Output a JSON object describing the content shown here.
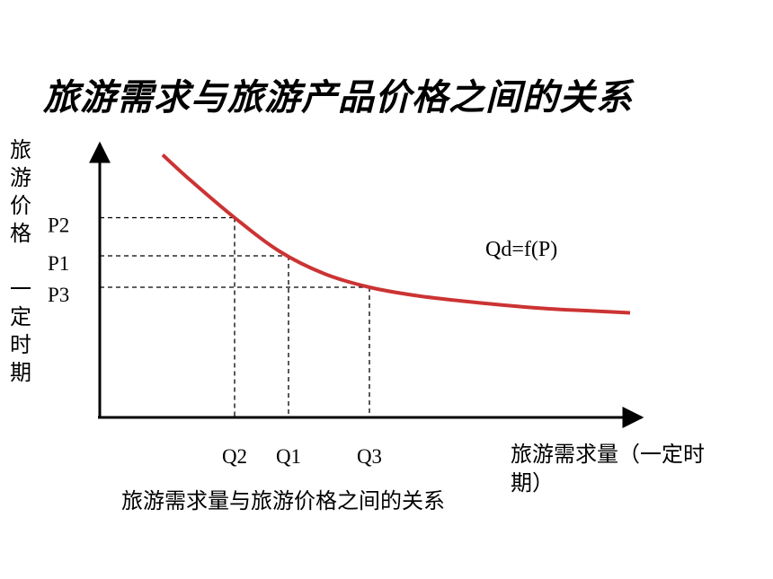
{
  "chart_data": {
    "type": "line",
    "title": "旅游需求与旅游产品价格之间的关系",
    "ylabel": "旅\n游\n价\n格\n\n一\n定\n时\n期",
    "xlabel": "旅游需求量（一定时期）",
    "caption": "旅游需求量与旅游价格之间的关系",
    "curve_label": "Qd=f(P)",
    "curve_color": "#cc3333",
    "series": [
      {
        "x": [
          0.7,
          1.0,
          1.5,
          2.0,
          2.5,
          3.0,
          3.5,
          4.0,
          4.5,
          5.0,
          5.5,
          5.9
        ],
        "y": [
          5.85,
          5.3,
          4.45,
          3.7,
          3.2,
          2.9,
          2.72,
          2.6,
          2.5,
          2.42,
          2.37,
          2.33
        ]
      }
    ],
    "points": [
      {
        "xlabel": "Q2",
        "ylabel": "P2",
        "x": 1.5,
        "y": 4.45
      },
      {
        "xlabel": "Q1",
        "ylabel": "P1",
        "x": 2.1,
        "y": 3.6
      },
      {
        "xlabel": "Q3",
        "ylabel": "P3",
        "x": 3.0,
        "y": 2.9
      }
    ],
    "xlim": [
      0,
      6.0
    ],
    "ylim": [
      0,
      6.0
    ],
    "grid": false,
    "dashed_guides": true
  }
}
